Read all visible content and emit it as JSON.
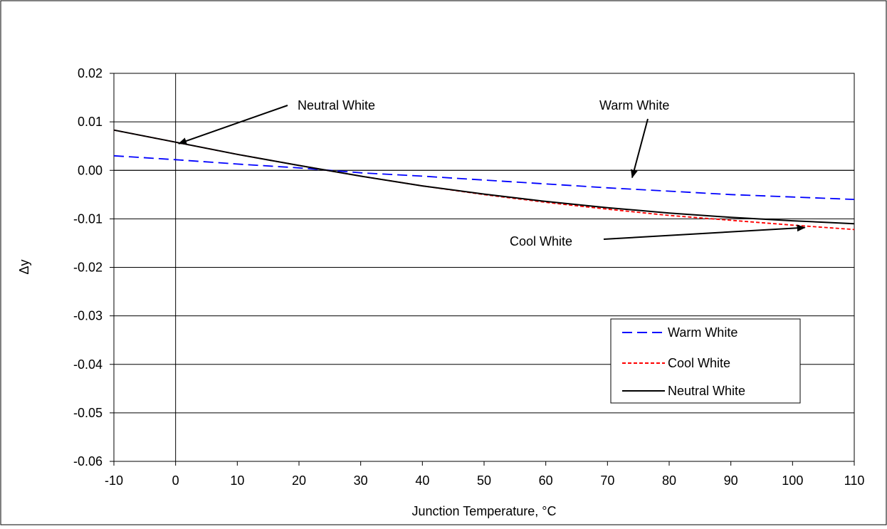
{
  "chart_data": {
    "type": "line",
    "title": "",
    "xlabel": "Junction Temperature, °C",
    "ylabel": "Δy",
    "xlim": [
      -10,
      110
    ],
    "ylim": [
      -0.06,
      0.02
    ],
    "x_ticks": [
      "-10",
      "0",
      "10",
      "20",
      "30",
      "40",
      "50",
      "60",
      "70",
      "80",
      "90",
      "100",
      "110"
    ],
    "y_ticks": [
      "0.02",
      "0.01",
      "0.00",
      "-0.01",
      "-0.02",
      "-0.03",
      "-0.04",
      "-0.05",
      "-0.06"
    ],
    "grid": "horizontal",
    "legend_position": "bottom-right",
    "series": [
      {
        "name": "Warm White",
        "color": "#0000ff",
        "style": "dashed",
        "x": [
          -10,
          0,
          10,
          20,
          30,
          40,
          50,
          60,
          70,
          80,
          90,
          100,
          110
        ],
        "y": [
          0.003,
          0.0022,
          0.0013,
          0.0005,
          -0.0005,
          -0.0012,
          -0.002,
          -0.0028,
          -0.0036,
          -0.0043,
          -0.005,
          -0.0055,
          -0.006
        ]
      },
      {
        "name": "Cool White",
        "color": "#ff0000",
        "style": "dotted",
        "x": [
          -10,
          0,
          10,
          20,
          30,
          40,
          50,
          60,
          70,
          80,
          90,
          100,
          110
        ],
        "y": [
          0.0083,
          0.0058,
          0.0033,
          0.001,
          -0.0012,
          -0.0032,
          -0.005,
          -0.0066,
          -0.008,
          -0.0093,
          -0.0103,
          -0.0113,
          -0.0122
        ]
      },
      {
        "name": "Neutral White",
        "color": "#000000",
        "style": "solid",
        "x": [
          -10,
          0,
          10,
          20,
          30,
          40,
          50,
          60,
          70,
          80,
          90,
          100,
          110
        ],
        "y": [
          0.0083,
          0.0058,
          0.0033,
          0.001,
          -0.0012,
          -0.0032,
          -0.0049,
          -0.0064,
          -0.0077,
          -0.0088,
          -0.0097,
          -0.0104,
          -0.011
        ]
      }
    ],
    "annotations": [
      {
        "text": "Neutral White",
        "points_to": [
          0.5,
          0.0055
        ]
      },
      {
        "text": "Warm White",
        "points_to": [
          74,
          -0.0015
        ]
      },
      {
        "text": "Cool White",
        "points_to": [
          102,
          -0.0118
        ]
      }
    ]
  }
}
